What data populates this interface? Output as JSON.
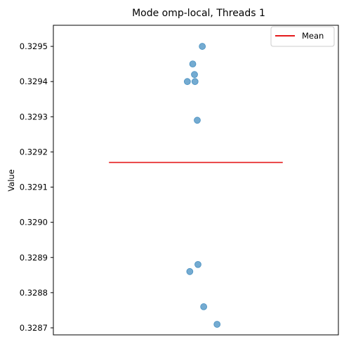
{
  "chart_data": {
    "type": "scatter",
    "title": "Mode omp-local, Threads 1",
    "xlabel": "",
    "ylabel": "Value",
    "ylim": [
      0.32868,
      0.32956
    ],
    "yticks": [
      "0.3287",
      "0.3288",
      "0.3289",
      "0.3290",
      "0.3291",
      "0.3292",
      "0.3293",
      "0.3294",
      "0.3295"
    ],
    "grid": false,
    "legend_position": "top-right",
    "series": [
      {
        "kind": "points",
        "color": "#1f77b4",
        "x": [
          0.037,
          -0.018,
          -0.008,
          -0.005,
          -0.049,
          0.008,
          0.012,
          -0.035,
          0.045,
          0.122
        ],
        "y": [
          0.3295,
          0.32945,
          0.32942,
          0.3294,
          0.3294,
          0.32929,
          0.32888,
          0.32886,
          0.32876,
          0.32871
        ]
      },
      {
        "kind": "line",
        "name": "Mean",
        "color": "#e41a1c",
        "x": [
          -0.5,
          0.5
        ],
        "y": [
          0.32917,
          0.32917
        ]
      }
    ]
  }
}
